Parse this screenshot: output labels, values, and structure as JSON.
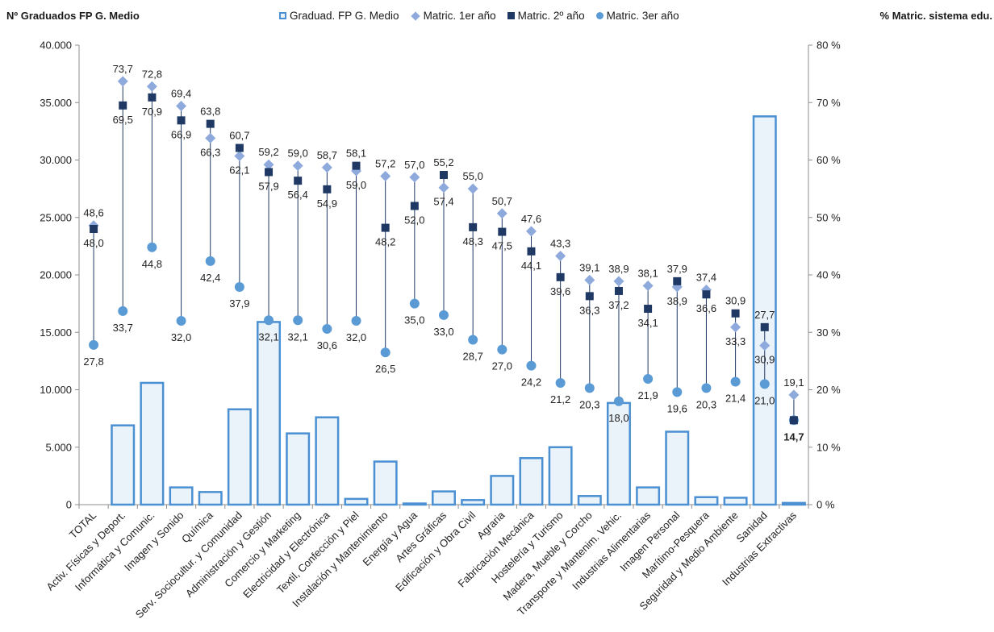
{
  "titles": {
    "left_axis": "Nº Graduados FP G. Medio",
    "right_axis": "% Matric. sistema edu."
  },
  "legend": [
    {
      "key": "bar",
      "label": "Graduad. FP G. Medio"
    },
    {
      "key": "m1",
      "label": "Matric. 1er año"
    },
    {
      "key": "m2",
      "label": "Matric. 2º año"
    },
    {
      "key": "m3",
      "label": "Matric. 3er año"
    }
  ],
  "colors": {
    "bar_stroke": "#4a90d2",
    "bar_fill": "#eaf2fa",
    "m1": "#8ea9db",
    "m2": "#1f3864",
    "m3": "#5b9bd5",
    "connector": "#1f3864",
    "axis": "#8c8c8c"
  },
  "chart_data": {
    "type": "bar",
    "left_axis": {
      "ylim": [
        0,
        40000
      ],
      "ticks": [
        0,
        5000,
        10000,
        15000,
        20000,
        25000,
        30000,
        35000,
        40000
      ],
      "tick_labels": [
        "0",
        "5.000",
        "10.000",
        "15.000",
        "20.000",
        "25.000",
        "30.000",
        "35.000",
        "40.000"
      ]
    },
    "right_axis": {
      "ylim": [
        0,
        80
      ],
      "ticks": [
        0,
        10,
        20,
        30,
        40,
        50,
        60,
        70,
        80
      ],
      "tick_labels": [
        "0 %",
        "10 %",
        "20 %",
        "30 %",
        "40 %",
        "50 %",
        "60 %",
        "70 %",
        "80 %"
      ]
    },
    "categories": [
      "TOTAL",
      "Activ. Físicas y Deport.",
      "Informática y Comunic.",
      "Imagen y Sonido",
      "Química",
      "Serv. Sociocultur. y Comunidad",
      "Administración y Gestión",
      "Comercio y Marketing",
      "Electricidad y Electrónica",
      "Textil, Confección y Piel",
      "Instalación y Mantenimiento",
      "Energía y Agua",
      "Artes Gráficas",
      "Edificación y Obra Civil",
      "Agraria",
      "Fabricación Mecánica",
      "Hostelería y Turismo",
      "Madera, Mueble y Corcho",
      "Transporte y Mantenim. Vehic.",
      "Industrias Alimentarias",
      "Imagen Personal",
      "Marítimo-Pesquera",
      "Seguridad y Medio Ambiente",
      "Sanidad",
      "Industrias Extractivas"
    ],
    "series": [
      {
        "name": "Graduad. FP G. Medio",
        "axis": "left",
        "kind": "bar",
        "values": [
          null,
          6900,
          10600,
          1500,
          1100,
          8300,
          15900,
          6200,
          7600,
          500,
          3750,
          100,
          1150,
          400,
          2500,
          4050,
          5000,
          750,
          8850,
          1500,
          6350,
          650,
          600,
          33800,
          150
        ]
      },
      {
        "name": "Matric. 1er año",
        "axis": "right",
        "kind": "diamond",
        "values": [
          48.6,
          73.7,
          72.8,
          69.4,
          63.8,
          60.7,
          59.2,
          59.0,
          58.7,
          58.1,
          57.2,
          57.0,
          55.2,
          55.0,
          50.7,
          47.6,
          43.3,
          39.1,
          38.9,
          38.1,
          37.9,
          37.4,
          30.9,
          27.7,
          19.1
        ]
      },
      {
        "name": "Matric. 2º año",
        "axis": "right",
        "kind": "square",
        "values": [
          48.0,
          69.5,
          70.9,
          66.9,
          66.3,
          62.1,
          57.9,
          56.4,
          54.9,
          59.0,
          48.2,
          52.0,
          57.4,
          48.3,
          47.5,
          44.1,
          39.6,
          36.3,
          37.2,
          34.1,
          38.9,
          36.6,
          33.3,
          30.9,
          14.7
        ]
      },
      {
        "name": "Matric. 3er año",
        "axis": "right",
        "kind": "circle",
        "values": [
          27.8,
          33.7,
          44.8,
          32.0,
          42.4,
          37.9,
          32.1,
          32.1,
          30.6,
          32.0,
          26.5,
          35.0,
          33.0,
          28.7,
          27.0,
          24.2,
          21.2,
          20.3,
          18.0,
          21.9,
          19.6,
          20.3,
          21.4,
          21.0,
          14.7
        ]
      }
    ],
    "data_labels": [
      {
        "top": "48,6",
        "bottom": "48,0",
        "third": "27,8"
      },
      {
        "top": "73,7",
        "bottom": "69,5",
        "third": "33,7"
      },
      {
        "top": "72,8",
        "bottom": "70,9",
        "third": "44,8"
      },
      {
        "top": "69,4",
        "bottom": "66,9",
        "third": "32,0"
      },
      {
        "top": "63,8",
        "bottom": "66,3",
        "third": "42,4"
      },
      {
        "top": "60,7",
        "bottom": "62,1",
        "third": "37,9"
      },
      {
        "top": "59,2",
        "bottom": "57,9",
        "third": "32,1"
      },
      {
        "top": "59,0",
        "bottom": "56,4",
        "third": "32,1"
      },
      {
        "top": "58,7",
        "bottom": "54,9",
        "third": "30,6"
      },
      {
        "top": "58,1",
        "bottom": "59,0",
        "third": "32,0"
      },
      {
        "top": "57,2",
        "bottom": "48,2",
        "third": "26,5"
      },
      {
        "top": "57,0",
        "bottom": "52,0",
        "third": "35,0"
      },
      {
        "top": "55,2",
        "bottom": "57,4",
        "third": "33,0"
      },
      {
        "top": "55,0",
        "bottom": "48,3",
        "third": "28,7"
      },
      {
        "top": "50,7",
        "bottom": "47,5",
        "third": "27,0"
      },
      {
        "top": "47,6",
        "bottom": "44,1",
        "third": "24,2"
      },
      {
        "top": "43,3",
        "bottom": "39,6",
        "third": "21,2"
      },
      {
        "top": "39,1",
        "bottom": "36,3",
        "third": "20,3"
      },
      {
        "top": "38,9",
        "bottom": "37,2",
        "third": "18,0"
      },
      {
        "top": "38,1",
        "bottom": "34,1",
        "third": "21,9"
      },
      {
        "top": "37,9",
        "bottom": "38,9",
        "third": "19,6"
      },
      {
        "top": "37,4",
        "bottom": "36,6",
        "third": "20,3"
      },
      {
        "top": "30,9",
        "bottom": "33,3",
        "third": "21,4"
      },
      {
        "top": "27,7",
        "bottom": "30,9",
        "third": "21,0"
      },
      {
        "top": "19,1",
        "bottom": "",
        "third": "14,7"
      }
    ],
    "grid": false
  }
}
